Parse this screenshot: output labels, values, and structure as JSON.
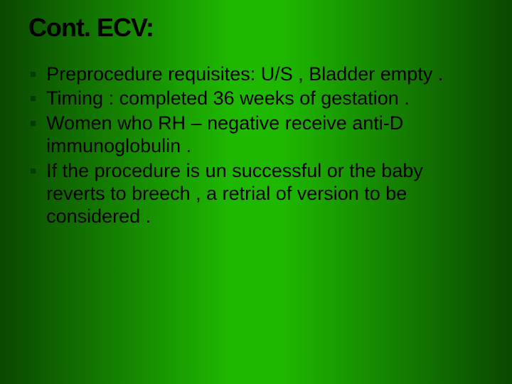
{
  "slide": {
    "title": "Cont. ECV:",
    "background_gradient": {
      "left": "#0a4800",
      "center": "#1eb800",
      "right": "#0a4800"
    },
    "title_color": "#000000",
    "title_fontsize": 36,
    "title_fontweight": 900,
    "body_fontsize": 27,
    "body_color": "#000000",
    "bullet_marker": "■",
    "bullet_marker_color": "#003900",
    "bullets": [
      "Preprocedure requisites: U/S , Bladder empty .",
      "Timing : completed 36 weeks of gestation .",
      "Women who RH – negative receive anti-D immunoglobulin .",
      " If the procedure is un successful or the baby reverts to breech , a retrial of version to be considered ."
    ]
  }
}
